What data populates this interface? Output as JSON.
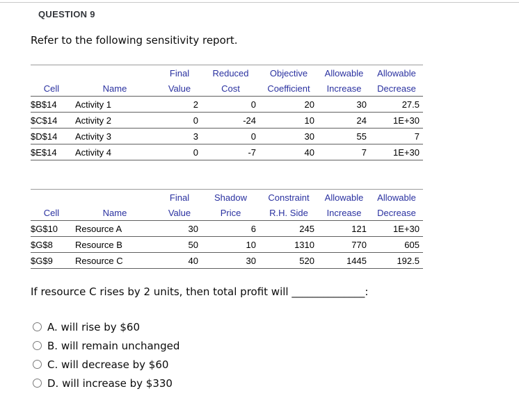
{
  "page": {
    "question_label": "QUESTION 9",
    "intro": "Refer to the following sensitivity report.",
    "prompt_text": "If resource C rises by 2 units, then total profit will",
    "prompt_blank": "______________",
    "prompt_suffix": ":"
  },
  "colors": {
    "header_blue": "#2a31a0",
    "rule_gray": "#c9c9c9",
    "table_line": "#5f5f5f"
  },
  "variable_table": {
    "header_row1": [
      "",
      "",
      "Final",
      "Reduced",
      "Objective",
      "Allowable",
      "Allowable"
    ],
    "header_row2": [
      "Cell",
      "Name",
      "Value",
      "Cost",
      "Coefficient",
      "Increase",
      "Decrease"
    ],
    "rows": [
      [
        "$B$14",
        "Activity 1",
        "2",
        "0",
        "20",
        "30",
        "27.5"
      ],
      [
        "$C$14",
        "Activity 2",
        "0",
        "-24",
        "10",
        "24",
        "1E+30"
      ],
      [
        "$D$14",
        "Activity 3",
        "3",
        "0",
        "30",
        "55",
        "7"
      ],
      [
        "$E$14",
        "Activity 4",
        "0",
        "-7",
        "40",
        "7",
        "1E+30"
      ]
    ]
  },
  "constraint_table": {
    "header_row1": [
      "",
      "",
      "Final",
      "Shadow",
      "Constraint",
      "Allowable",
      "Allowable"
    ],
    "header_row2": [
      "Cell",
      "Name",
      "Value",
      "Price",
      "R.H. Side",
      "Increase",
      "Decrease"
    ],
    "rows": [
      [
        "$G$10",
        "Resource A",
        "30",
        "6",
        "245",
        "121",
        "1E+30"
      ],
      [
        "$G$8",
        "Resource B",
        "50",
        "10",
        "1310",
        "770",
        "605"
      ],
      [
        "$G$9",
        "Resource C",
        "40",
        "30",
        "520",
        "1445",
        "192.5"
      ]
    ]
  },
  "choices": [
    "A. will rise by $60",
    "B. will remain unchanged",
    "C. will decrease by $60",
    "D. will increase by $330"
  ]
}
